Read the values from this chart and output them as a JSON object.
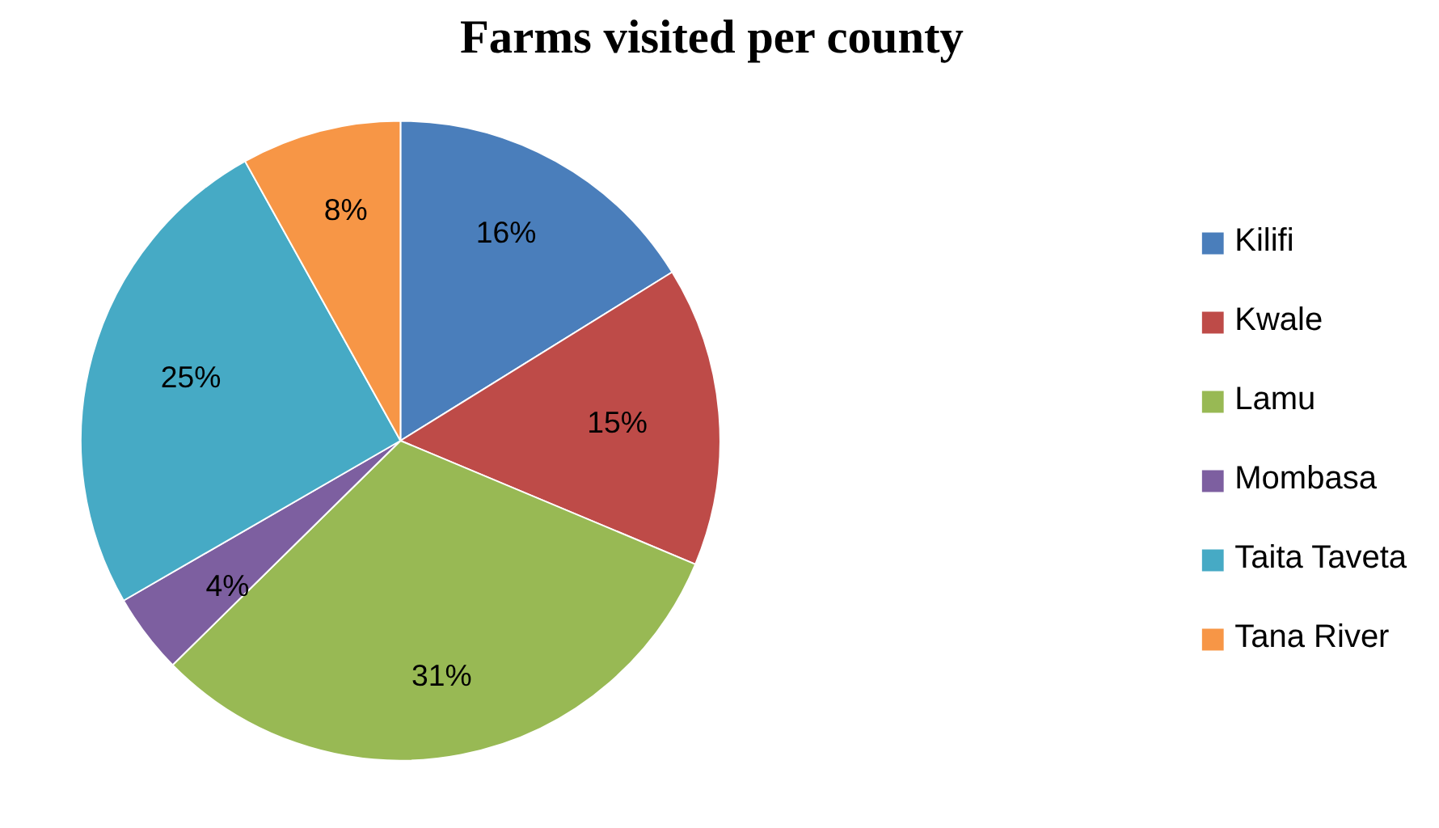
{
  "chart_data": {
    "type": "pie",
    "title": "Farms visited per county",
    "categories": [
      "Kilifi",
      "Kwale",
      "Lamu",
      "Mombasa",
      "Taita Taveta",
      "Tana River"
    ],
    "values": [
      16,
      15,
      31,
      4,
      25,
      8
    ],
    "colors": [
      "#4a7ebb",
      "#be4b48",
      "#98b954",
      "#7d5fa0",
      "#46aac5",
      "#f79646"
    ],
    "value_labels": [
      "16%",
      "15%",
      "31%",
      "4%",
      "25%",
      "8%"
    ],
    "legend": "right"
  }
}
